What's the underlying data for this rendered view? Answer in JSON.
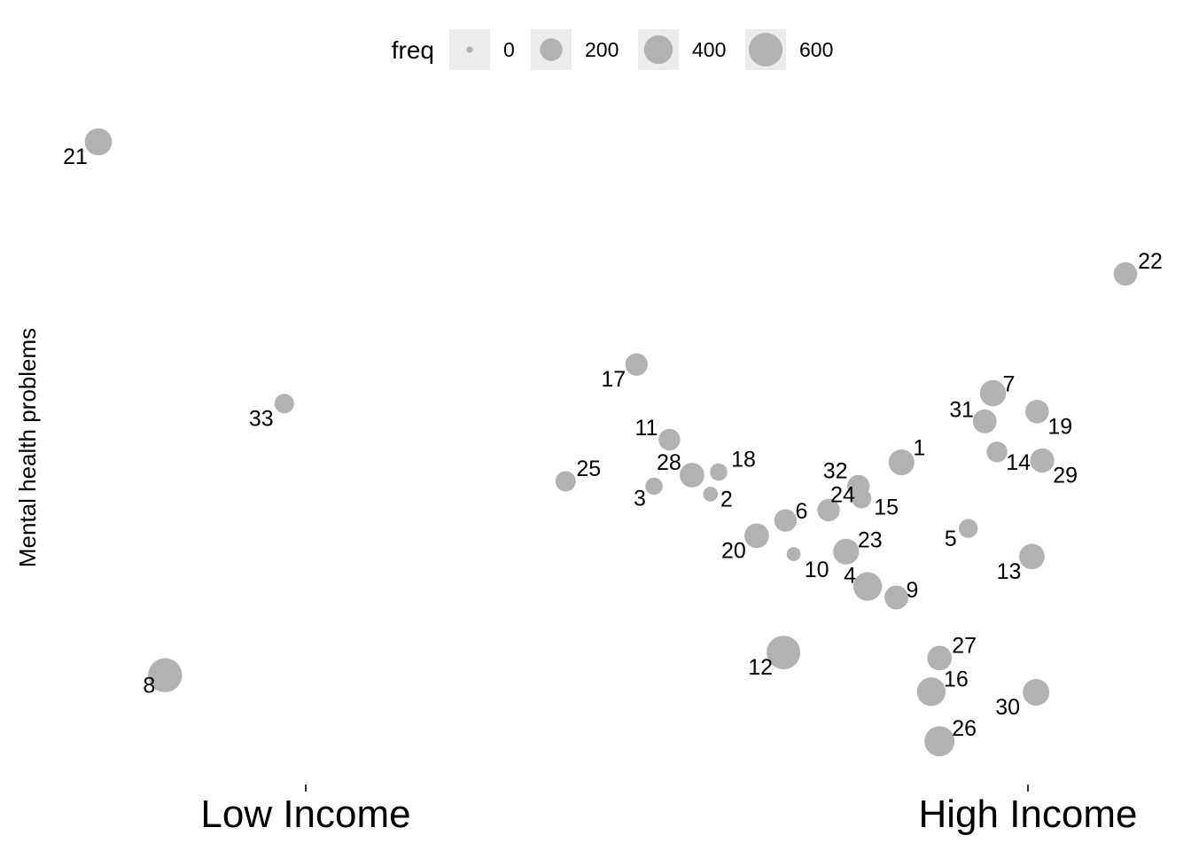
{
  "chart_data": {
    "type": "scatter",
    "ylabel": "Mental health problems",
    "xticks": [
      "Low Income",
      "High Income"
    ],
    "legend": {
      "title": "freq",
      "placement": "top",
      "breaks": [
        0,
        200,
        400,
        600
      ],
      "labels": [
        "0",
        "200",
        "400",
        "600"
      ]
    },
    "point_color": "#b2b2b2",
    "points": [
      {
        "id": "1",
        "x": 0.782,
        "y": 0.476,
        "freq": 300
      },
      {
        "id": "2",
        "x": 0.596,
        "y": 0.424,
        "freq": 50
      },
      {
        "id": "3",
        "x": 0.541,
        "y": 0.437,
        "freq": 90
      },
      {
        "id": "4",
        "x": 0.749,
        "y": 0.273,
        "freq": 400
      },
      {
        "id": "5",
        "x": 0.847,
        "y": 0.368,
        "freq": 120
      },
      {
        "id": "6",
        "x": 0.669,
        "y": 0.381,
        "freq": 200
      },
      {
        "id": "7",
        "x": 0.871,
        "y": 0.589,
        "freq": 310
      },
      {
        "id": "8",
        "x": 0.065,
        "y": 0.128,
        "freq": 620
      },
      {
        "id": "9",
        "x": 0.777,
        "y": 0.255,
        "freq": 240
      },
      {
        "id": "10",
        "x": 0.677,
        "y": 0.326,
        "freq": 40
      },
      {
        "id": "11",
        "x": 0.556,
        "y": 0.513,
        "freq": 180
      },
      {
        "id": "12",
        "x": 0.667,
        "y": 0.165,
        "freq": 600
      },
      {
        "id": "13",
        "x": 0.909,
        "y": 0.322,
        "freq": 290
      },
      {
        "id": "14",
        "x": 0.875,
        "y": 0.493,
        "freq": 160
      },
      {
        "id": "15",
        "x": 0.743,
        "y": 0.417,
        "freq": 140
      },
      {
        "id": "16",
        "x": 0.811,
        "y": 0.101,
        "freq": 400
      },
      {
        "id": "17",
        "x": 0.524,
        "y": 0.636,
        "freq": 200
      },
      {
        "id": "18",
        "x": 0.604,
        "y": 0.46,
        "freq": 90
      },
      {
        "id": "19",
        "x": 0.914,
        "y": 0.559,
        "freq": 230
      },
      {
        "id": "20",
        "x": 0.641,
        "y": 0.356,
        "freq": 260
      },
      {
        "id": "21",
        "x": 0.0,
        "y": 1.0,
        "freq": 340
      },
      {
        "id": "22",
        "x": 1.0,
        "y": 0.784,
        "freq": 230
      },
      {
        "id": "23",
        "x": 0.728,
        "y": 0.33,
        "freq": 300
      },
      {
        "id": "24",
        "x": 0.711,
        "y": 0.398,
        "freq": 200
      },
      {
        "id": "25",
        "x": 0.455,
        "y": 0.445,
        "freq": 150
      },
      {
        "id": "26",
        "x": 0.819,
        "y": 0.02,
        "freq": 450
      },
      {
        "id": "27",
        "x": 0.819,
        "y": 0.156,
        "freq": 260
      },
      {
        "id": "28",
        "x": 0.578,
        "y": 0.455,
        "freq": 260
      },
      {
        "id": "29",
        "x": 0.919,
        "y": 0.479,
        "freq": 250
      },
      {
        "id": "30",
        "x": 0.913,
        "y": 0.1,
        "freq": 320
      },
      {
        "id": "31",
        "x": 0.863,
        "y": 0.543,
        "freq": 240
      },
      {
        "id": "32",
        "x": 0.74,
        "y": 0.437,
        "freq": 200
      },
      {
        "id": "33",
        "x": 0.181,
        "y": 0.572,
        "freq": 130
      }
    ]
  }
}
